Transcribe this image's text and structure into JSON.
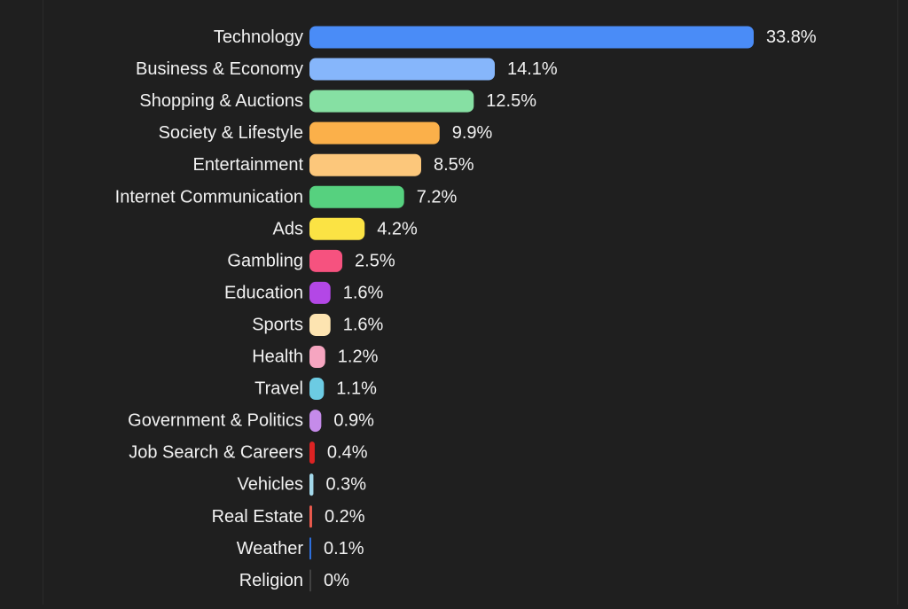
{
  "chart_data": {
    "type": "bar",
    "orientation": "horizontal",
    "categories": [
      "Technology",
      "Business & Economy",
      "Shopping & Auctions",
      "Society & Lifestyle",
      "Entertainment",
      "Internet Communication",
      "Ads",
      "Gambling",
      "Education",
      "Sports",
      "Health",
      "Travel",
      "Government & Politics",
      "Job Search & Careers",
      "Vehicles",
      "Real Estate",
      "Weather",
      "Religion"
    ],
    "values": [
      33.8,
      14.1,
      12.5,
      9.9,
      8.5,
      7.2,
      4.2,
      2.5,
      1.6,
      1.6,
      1.2,
      1.1,
      0.9,
      0.4,
      0.3,
      0.2,
      0.1,
      0
    ],
    "value_labels": [
      "33.8%",
      "14.1%",
      "12.5%",
      "9.9%",
      "8.5%",
      "7.2%",
      "4.2%",
      "2.5%",
      "1.6%",
      "1.6%",
      "1.2%",
      "1.1%",
      "0.9%",
      "0.4%",
      "0.3%",
      "0.2%",
      "0.1%",
      "0%"
    ],
    "colors": [
      "#4a8cf7",
      "#86b6fb",
      "#86e0a3",
      "#fbb04a",
      "#fcc77b",
      "#56d17f",
      "#fbe344",
      "#f6527f",
      "#b347e6",
      "#fde4b1",
      "#f6a5c0",
      "#6ccbe3",
      "#c58bea",
      "#dc2323",
      "#a3d8ea",
      "#ea5a4d",
      "#2d6fdc",
      "#4a4a4a"
    ],
    "title": "",
    "xlabel": "",
    "ylabel": "",
    "xlim": [
      0,
      33.8
    ],
    "grid": false,
    "legend": "none"
  },
  "theme": {
    "background": "#1f1f1f",
    "text_color": "#f2f2f2"
  }
}
